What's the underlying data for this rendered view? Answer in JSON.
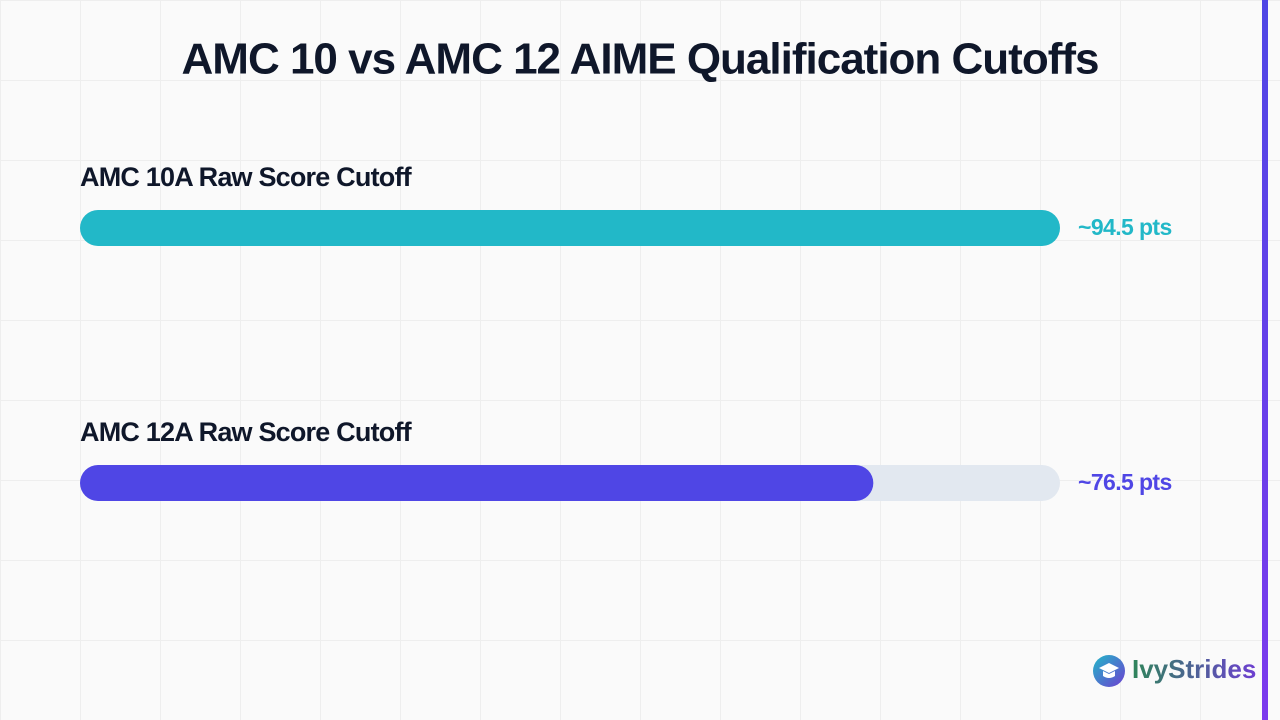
{
  "chart_data": {
    "type": "bar",
    "orientation": "horizontal",
    "title": "AMC 10 vs AMC 12 AIME Qualification Cutoffs",
    "categories": [
      "AMC 10A Raw Score Cutoff",
      "AMC 12A Raw Score Cutoff"
    ],
    "values": [
      94.5,
      76.5
    ],
    "value_labels": [
      "~94.5 pts",
      "~76.5 pts"
    ],
    "colors": [
      "#22b8c8",
      "#4f46e5"
    ],
    "track_color": "#e2e8f0",
    "xlim": [
      0,
      94.5
    ]
  },
  "brand": "IvyStrides"
}
